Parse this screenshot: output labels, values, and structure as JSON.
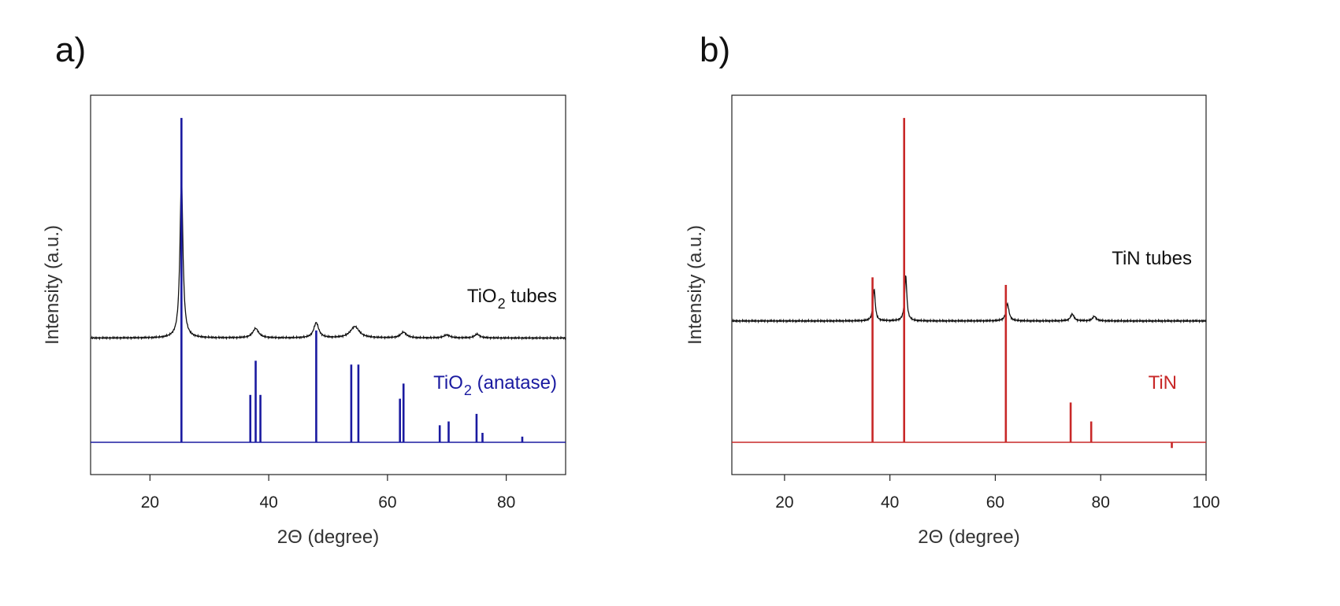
{
  "colors": {
    "measured": "#111111",
    "anatase": "#1a1aa0",
    "tin_ref": "#c82828",
    "frame": "#222222"
  },
  "chart_data": [
    {
      "type": "line",
      "panel_label": "a)",
      "xlabel": "2Θ (degree)",
      "ylabel": "Intensity (a.u.)",
      "xlim": [
        10,
        90
      ],
      "ylim": [
        0,
        1
      ],
      "xticks": [
        20,
        40,
        60,
        80
      ],
      "yticks_shown": false,
      "grid": false,
      "series": [
        {
          "name": "TiO2 tubes",
          "label_text": "TiO",
          "label_subscript": "2",
          "label_suffix": " tubes",
          "color": "#111111",
          "kind": "pattern",
          "baseline": 0.36,
          "peaks": [
            [
              25.3,
              0.42,
              0.3
            ],
            [
              37.8,
              0.025,
              0.6
            ],
            [
              48.0,
              0.04,
              0.5
            ],
            [
              54.5,
              0.03,
              0.9
            ],
            [
              62.7,
              0.015,
              0.6
            ],
            [
              70.0,
              0.008,
              0.6
            ],
            [
              75.1,
              0.01,
              0.5
            ]
          ]
        },
        {
          "name": "TiO2 (anatase)",
          "label_text": "TiO",
          "label_subscript": "2",
          "label_suffix": " (anatase)",
          "color": "#1a1aa0",
          "kind": "sticks",
          "baseline": 0.085,
          "sticks": [
            [
              25.3,
              0.94
            ],
            [
              36.9,
              0.21
            ],
            [
              37.8,
              0.3
            ],
            [
              38.6,
              0.21
            ],
            [
              48.0,
              0.38
            ],
            [
              53.9,
              0.29
            ],
            [
              55.1,
              0.29
            ],
            [
              62.1,
              0.2
            ],
            [
              62.7,
              0.24
            ],
            [
              68.8,
              0.13
            ],
            [
              70.3,
              0.14
            ],
            [
              75.0,
              0.16
            ],
            [
              76.0,
              0.11
            ],
            [
              82.7,
              0.1
            ]
          ]
        }
      ]
    },
    {
      "type": "line",
      "panel_label": "b)",
      "xlabel": "2Θ (degree)",
      "ylabel": "Intensity (a.u.)",
      "xlim": [
        10,
        100
      ],
      "ylim": [
        0,
        1
      ],
      "xticks": [
        20,
        40,
        60,
        80,
        100
      ],
      "yticks_shown": false,
      "grid": false,
      "series": [
        {
          "name": "TiN tubes",
          "label_text": "TiN tubes",
          "label_subscript": "",
          "label_suffix": "",
          "color": "#111111",
          "kind": "pattern",
          "baseline": 0.405,
          "peaks": [
            [
              37.0,
              0.085,
              0.25
            ],
            [
              43.0,
              0.12,
              0.25
            ],
            [
              62.3,
              0.045,
              0.35
            ],
            [
              74.6,
              0.018,
              0.4
            ],
            [
              78.8,
              0.012,
              0.4
            ]
          ]
        },
        {
          "name": "TiN",
          "label_text": "TiN",
          "label_subscript": "",
          "label_suffix": "",
          "color": "#c82828",
          "kind": "sticks",
          "baseline": 0.085,
          "sticks": [
            [
              36.7,
              0.52
            ],
            [
              42.7,
              0.94
            ],
            [
              62.0,
              0.5
            ],
            [
              74.3,
              0.19
            ],
            [
              78.2,
              0.14
            ],
            [
              93.5,
              0.07
            ]
          ]
        }
      ]
    }
  ]
}
